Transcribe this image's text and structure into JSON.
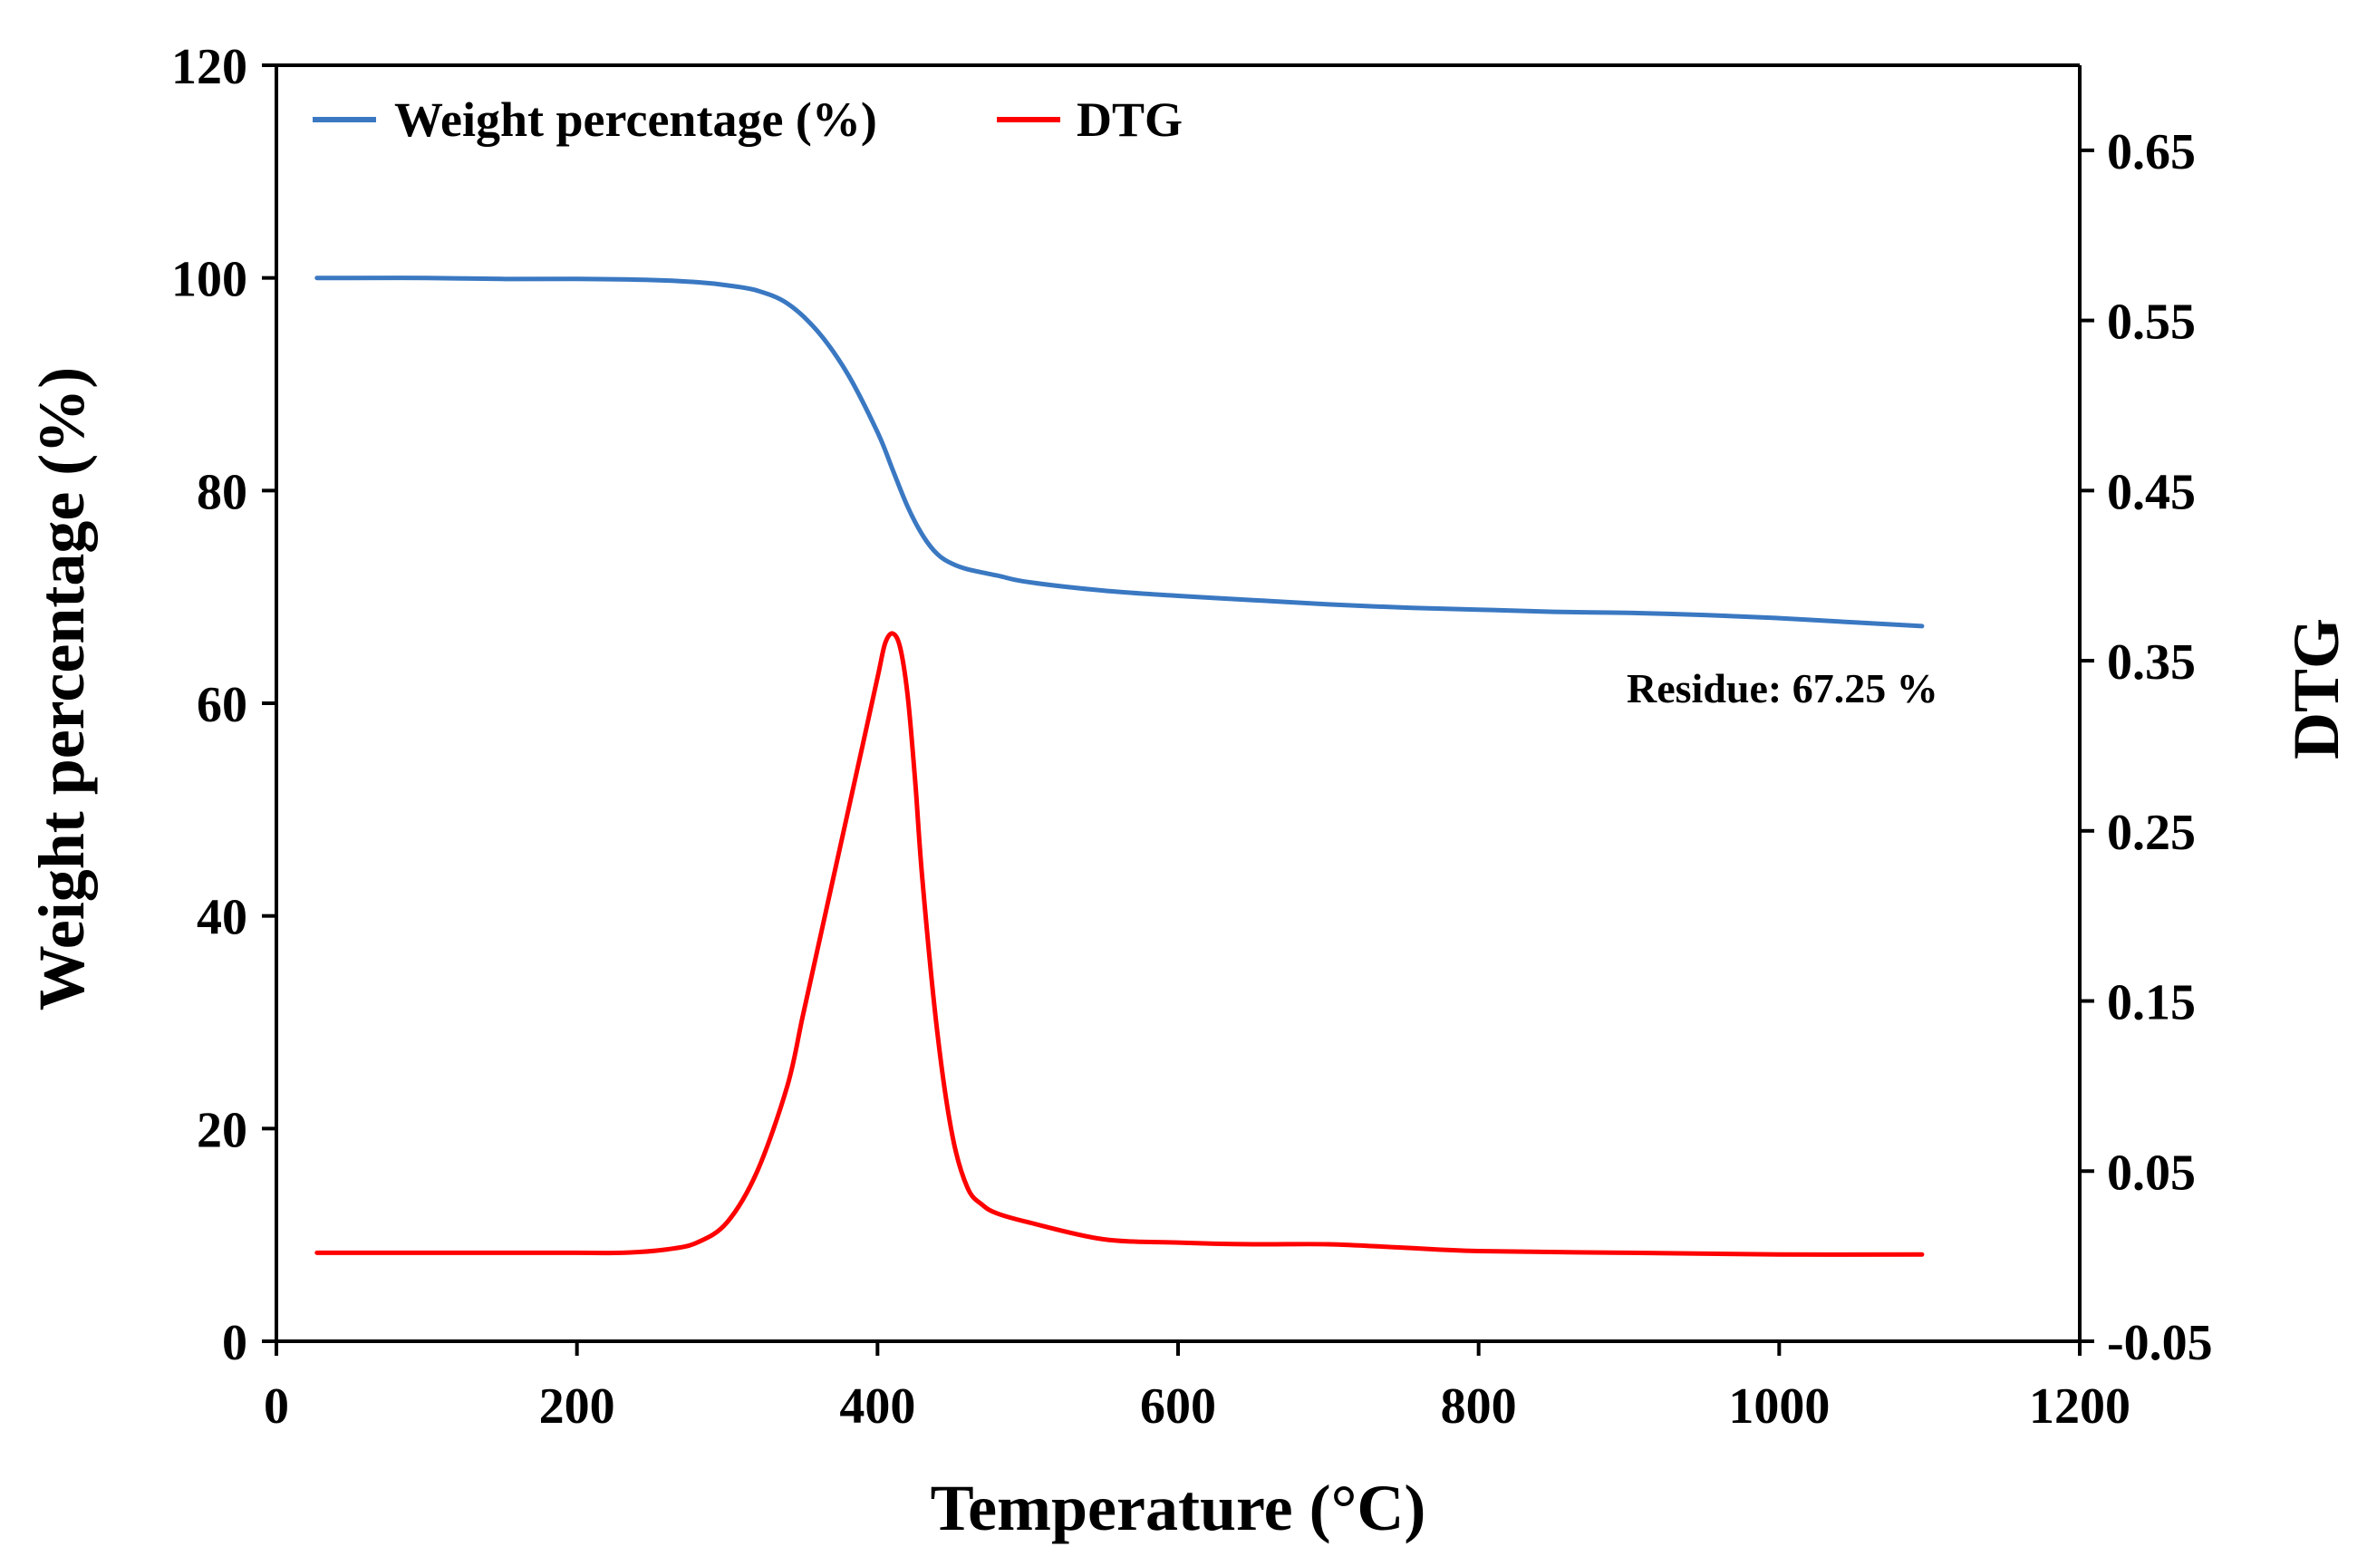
{
  "chart_data": {
    "type": "line",
    "title": "",
    "xlabel": "Temperature (°C)",
    "ylabel_left": "Weight percentage (%)",
    "ylabel_right": "DTG",
    "xlim": [
      0,
      1200
    ],
    "ylim_left": [
      0,
      120
    ],
    "ylim_right": [
      -0.05,
      0.7
    ],
    "x_ticks": [
      "0",
      "200",
      "400",
      "600",
      "800",
      "1000",
      "1200"
    ],
    "y_left_ticks": [
      "0",
      "20",
      "40",
      "60",
      "80",
      "100",
      "120"
    ],
    "y_right_ticks": [
      "-0.05",
      "0.05",
      "0.15",
      "0.25",
      "0.35",
      "0.45",
      "0.55",
      "0.65"
    ],
    "grid": false,
    "legend_position": "top-left",
    "annotation": "Residue: 67.25 %",
    "series": [
      {
        "name": "Weight percentage (%)",
        "axis": "left",
        "color": "#3a78c2",
        "x": [
          27,
          50,
          100,
          150,
          200,
          250,
          280,
          300,
          320,
          340,
          360,
          380,
          400,
          410,
          420,
          430,
          440,
          450,
          460,
          480,
          500,
          550,
          600,
          650,
          700,
          750,
          800,
          850,
          900,
          950,
          1000,
          1050,
          1095
        ],
        "y": [
          100.0,
          100.0,
          100.0,
          99.9,
          99.9,
          99.8,
          99.6,
          99.3,
          98.8,
          97.6,
          95.0,
          91.0,
          85.5,
          82.0,
          78.5,
          75.8,
          74.0,
          73.1,
          72.6,
          72.0,
          71.4,
          70.6,
          70.1,
          69.7,
          69.3,
          69.0,
          68.8,
          68.6,
          68.5,
          68.3,
          68.0,
          67.6,
          67.25
        ]
      },
      {
        "name": "DTG",
        "axis": "right",
        "color": "#ff0000",
        "x": [
          27,
          100,
          200,
          230,
          260,
          280,
          300,
          320,
          340,
          350,
          360,
          370,
          380,
          390,
          400,
          405,
          410,
          415,
          420,
          425,
          430,
          440,
          450,
          460,
          470,
          480,
          500,
          550,
          600,
          650,
          700,
          750,
          800,
          900,
          1000,
          1095
        ],
        "y": [
          0.002,
          0.002,
          0.002,
          0.002,
          0.004,
          0.008,
          0.02,
          0.05,
          0.1,
          0.14,
          0.18,
          0.22,
          0.26,
          0.3,
          0.34,
          0.36,
          0.366,
          0.358,
          0.33,
          0.28,
          0.22,
          0.13,
          0.07,
          0.04,
          0.03,
          0.025,
          0.02,
          0.01,
          0.008,
          0.007,
          0.007,
          0.005,
          0.003,
          0.002,
          0.001,
          0.001
        ]
      }
    ]
  }
}
